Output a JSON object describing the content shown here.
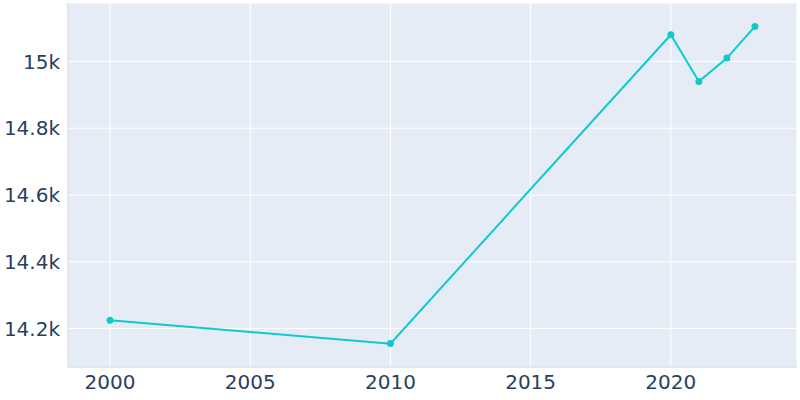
{
  "chart_data": {
    "type": "line",
    "x": [
      2000,
      2010,
      2020,
      2021,
      2022,
      2023
    ],
    "values": [
      14225,
      14155,
      15080,
      14940,
      15010,
      15105
    ],
    "color": "#10c9cc",
    "marker": "circle",
    "xlim": [
      1998.5,
      2024.5
    ],
    "xticks": [
      2000,
      2005,
      2010,
      2015,
      2020
    ],
    "ylim": [
      14085,
      15175
    ],
    "yticks": [
      {
        "value": 14200,
        "label": "14.2k"
      },
      {
        "value": 14400,
        "label": "14.4k"
      },
      {
        "value": 14600,
        "label": "14.6k"
      },
      {
        "value": 14800,
        "label": "14.8k"
      },
      {
        "value": 15000,
        "label": "15k"
      }
    ],
    "grid": true
  }
}
